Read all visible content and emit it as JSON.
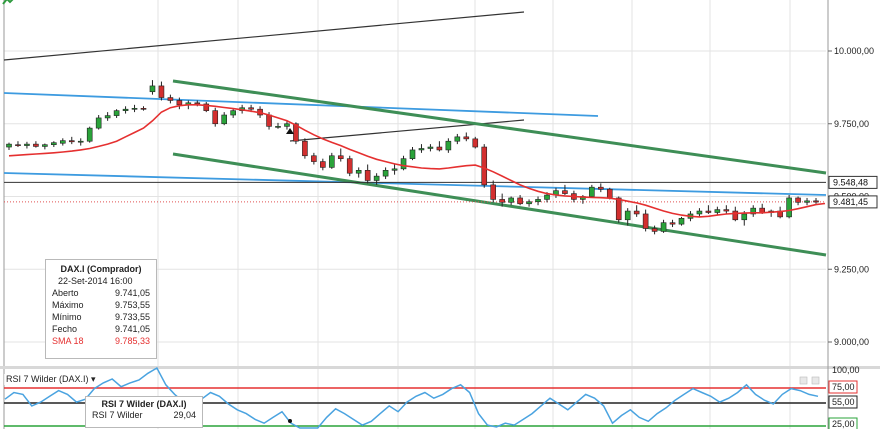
{
  "chart_data": [
    {
      "type": "candlestick",
      "instrument": "DAX.I",
      "ylim": [
        8900,
        10250
      ],
      "y_ticks": [
        "10.000,00",
        "9.750,00",
        "9.500,00",
        "9.250,00",
        "9.000,00"
      ],
      "y_tick_values": [
        10000,
        9750,
        9500,
        9250,
        9000
      ],
      "price_markers": [
        {
          "label": "9.548,48",
          "value": 9548.48
        },
        {
          "label": "9.481,45",
          "value": 9481.45
        }
      ],
      "candles": [
        [
          9670,
          9685,
          9660,
          9680
        ],
        [
          9678,
          9690,
          9670,
          9675
        ],
        [
          9675,
          9688,
          9665,
          9680
        ],
        [
          9680,
          9690,
          9668,
          9672
        ],
        [
          9672,
          9682,
          9662,
          9678
        ],
        [
          9678,
          9690,
          9670,
          9685
        ],
        [
          9683,
          9700,
          9675,
          9692
        ],
        [
          9692,
          9705,
          9680,
          9688
        ],
        [
          9688,
          9700,
          9675,
          9690
        ],
        [
          9690,
          9740,
          9685,
          9735
        ],
        [
          9735,
          9780,
          9730,
          9770
        ],
        [
          9770,
          9790,
          9760,
          9778
        ],
        [
          9778,
          9800,
          9770,
          9795
        ],
        [
          9795,
          9810,
          9785,
          9800
        ],
        [
          9800,
          9815,
          9790,
          9803
        ],
        [
          9803,
          9810,
          9795,
          9800
        ],
        [
          9860,
          9900,
          9850,
          9880
        ],
        [
          9880,
          9895,
          9830,
          9840
        ],
        [
          9840,
          9850,
          9820,
          9830
        ],
        [
          9830,
          9840,
          9800,
          9815
        ],
        [
          9815,
          9830,
          9800,
          9822
        ],
        [
          9822,
          9830,
          9810,
          9818
        ],
        [
          9818,
          9825,
          9790,
          9795
        ],
        [
          9795,
          9805,
          9740,
          9750
        ],
        [
          9750,
          9790,
          9745,
          9780
        ],
        [
          9780,
          9800,
          9770,
          9795
        ],
        [
          9795,
          9815,
          9785,
          9805
        ],
        [
          9805,
          9815,
          9790,
          9800
        ],
        [
          9800,
          9810,
          9770,
          9780
        ],
        [
          9780,
          9790,
          9730,
          9741
        ],
        [
          9741,
          9753,
          9733,
          9741
        ],
        [
          9741,
          9760,
          9730,
          9750
        ],
        [
          9750,
          9755,
          9680,
          9690
        ],
        [
          9690,
          9700,
          9630,
          9640
        ],
        [
          9640,
          9650,
          9610,
          9620
        ],
        [
          9620,
          9630,
          9590,
          9600
        ],
        [
          9600,
          9650,
          9595,
          9640
        ],
        [
          9640,
          9665,
          9620,
          9630
        ],
        [
          9630,
          9640,
          9570,
          9580
        ],
        [
          9580,
          9600,
          9565,
          9590
        ],
        [
          9590,
          9610,
          9545,
          9555
        ],
        [
          9555,
          9580,
          9540,
          9570
        ],
        [
          9570,
          9600,
          9560,
          9590
        ],
        [
          9590,
          9610,
          9575,
          9595
        ],
        [
          9595,
          9640,
          9590,
          9630
        ],
        [
          9630,
          9670,
          9625,
          9660
        ],
        [
          9660,
          9680,
          9650,
          9665
        ],
        [
          9665,
          9680,
          9655,
          9670
        ],
        [
          9670,
          9690,
          9655,
          9660
        ],
        [
          9660,
          9700,
          9650,
          9690
        ],
        [
          9690,
          9715,
          9680,
          9705
        ],
        [
          9705,
          9720,
          9690,
          9698
        ],
        [
          9698,
          9705,
          9665,
          9670
        ],
        [
          9670,
          9680,
          9530,
          9540
        ],
        [
          9540,
          9555,
          9480,
          9490
        ],
        [
          9490,
          9510,
          9465,
          9480
        ],
        [
          9480,
          9500,
          9470,
          9495
        ],
        [
          9495,
          9505,
          9470,
          9475
        ],
        [
          9475,
          9490,
          9465,
          9482
        ],
        [
          9482,
          9500,
          9470,
          9490
        ],
        [
          9490,
          9515,
          9480,
          9505
        ],
        [
          9505,
          9530,
          9495,
          9520
        ],
        [
          9520,
          9540,
          9505,
          9510
        ],
        [
          9510,
          9520,
          9480,
          9490
        ],
        [
          9490,
          9505,
          9475,
          9500
        ],
        [
          9500,
          9540,
          9495,
          9532
        ],
        [
          9532,
          9545,
          9515,
          9525
        ],
        [
          9525,
          9530,
          9490,
          9495
        ],
        [
          9495,
          9500,
          9410,
          9420
        ],
        [
          9420,
          9460,
          9400,
          9450
        ],
        [
          9450,
          9470,
          9430,
          9440
        ],
        [
          9440,
          9455,
          9380,
          9390
        ],
        [
          9390,
          9400,
          9370,
          9380
        ],
        [
          9380,
          9420,
          9375,
          9410
        ],
        [
          9410,
          9420,
          9395,
          9405
        ],
        [
          9405,
          9430,
          9400,
          9425
        ],
        [
          9425,
          9450,
          9415,
          9440
        ],
        [
          9440,
          9460,
          9430,
          9450
        ],
        [
          9450,
          9470,
          9440,
          9445
        ],
        [
          9445,
          9465,
          9435,
          9455
        ],
        [
          9455,
          9470,
          9440,
          9450
        ],
        [
          9450,
          9465,
          9415,
          9420
        ],
        [
          9420,
          9450,
          9400,
          9440
        ],
        [
          9440,
          9470,
          9430,
          9460
        ],
        [
          9460,
          9475,
          9440,
          9445
        ],
        [
          9445,
          9455,
          9430,
          9450
        ],
        [
          9450,
          9465,
          9425,
          9430
        ],
        [
          9430,
          9505,
          9425,
          9495
        ],
        [
          9495,
          9500,
          9470,
          9480
        ],
        [
          9480,
          9495,
          9470,
          9485
        ],
        [
          9485,
          9495,
          9475,
          9481
        ]
      ],
      "series": [
        {
          "name": "SMA 18",
          "color": "#e53030"
        }
      ],
      "sma": [
        9640,
        9642,
        9644,
        9646,
        9648,
        9650,
        9653,
        9656,
        9660,
        9665,
        9672,
        9680,
        9690,
        9705,
        9720,
        9735,
        9760,
        9790,
        9805,
        9812,
        9815,
        9815,
        9813,
        9810,
        9806,
        9802,
        9798,
        9793,
        9788,
        9780,
        9770,
        9760,
        9745,
        9728,
        9712,
        9698,
        9686,
        9675,
        9662,
        9650,
        9638,
        9628,
        9620,
        9612,
        9606,
        9602,
        9598,
        9596,
        9595,
        9598,
        9602,
        9606,
        9608,
        9598,
        9585,
        9570,
        9555,
        9540,
        9528,
        9518,
        9510,
        9505,
        9502,
        9500,
        9498,
        9497,
        9496,
        9494,
        9490,
        9484,
        9478,
        9470,
        9460,
        9450,
        9442,
        9436,
        9432,
        9430,
        9432,
        9436,
        9440,
        9442,
        9443,
        9444,
        9444,
        9446,
        9448,
        9452,
        9458,
        9465,
        9472,
        9476
      ],
      "info": {
        "title": "DAX.I (Comprador)",
        "date": "22-Set-2014 16:00",
        "rows": [
          {
            "label": "Aberto",
            "value": "9.741,05"
          },
          {
            "label": "Máximo",
            "value": "9.753,55"
          },
          {
            "label": "Mínimo",
            "value": "9.733,55"
          },
          {
            "label": "Fecho",
            "value": "9.741,05"
          }
        ],
        "sma_row": {
          "label": "SMA 18",
          "value": "9.785,33"
        }
      }
    },
    {
      "type": "line",
      "name": "RSI 7 Wilder (DAX.I)",
      "ylim": [
        0,
        100
      ],
      "y_ticks": [
        "100,00",
        "75,00",
        "55,00",
        "25,00"
      ],
      "y_tick_values": [
        100,
        75,
        55,
        25
      ],
      "values": [
        55,
        62,
        60,
        48,
        52,
        58,
        64,
        60,
        52,
        55,
        66,
        72,
        76,
        68,
        72,
        75,
        82,
        88,
        70,
        60,
        52,
        48,
        55,
        62,
        58,
        50,
        44,
        40,
        34,
        30,
        36,
        42,
        30,
        22,
        18,
        24,
        36,
        45,
        40,
        34,
        28,
        32,
        40,
        48,
        42,
        52,
        58,
        62,
        56,
        60,
        66,
        70,
        62,
        40,
        28,
        26,
        30,
        28,
        34,
        40,
        48,
        56,
        50,
        44,
        52,
        60,
        56,
        48,
        30,
        38,
        44,
        36,
        32,
        40,
        46,
        54,
        60,
        66,
        62,
        58,
        52,
        56,
        62,
        70,
        60,
        54,
        50,
        60,
        66,
        64,
        60,
        58
      ],
      "info": {
        "title": "RSI 7 Wilder (DAX.I)",
        "rows": [
          {
            "label": "RSI 7 Wilder",
            "value": "29,04"
          }
        ]
      }
    }
  ]
}
